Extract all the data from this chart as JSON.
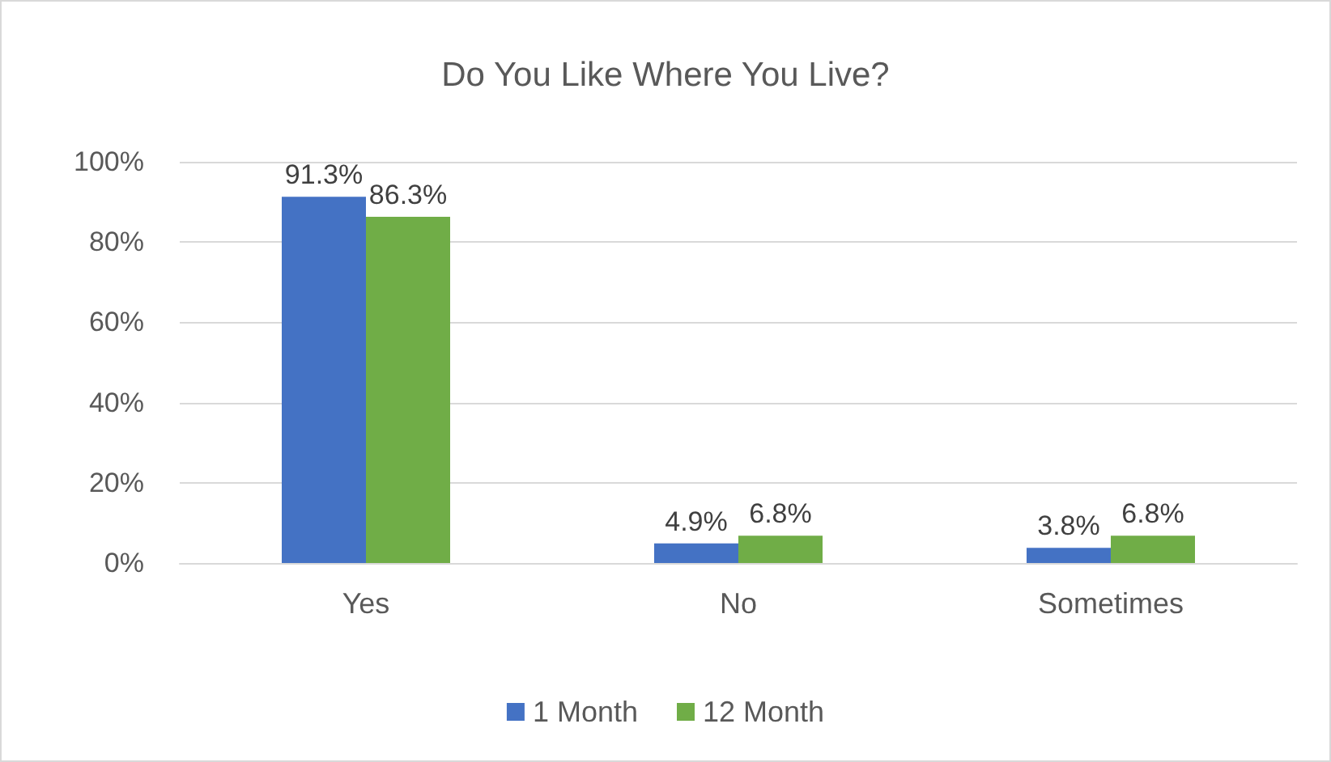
{
  "chart_data": {
    "type": "bar",
    "title": "Do You Like Where You Live?",
    "categories": [
      "Yes",
      "No",
      "Sometimes"
    ],
    "series": [
      {
        "name": "1 Month",
        "color": "#4472c4",
        "values": [
          91.3,
          4.9,
          3.8
        ],
        "value_labels": [
          "91.3%",
          "4.9%",
          "3.8%"
        ]
      },
      {
        "name": "12 Month",
        "color": "#70ad47",
        "values": [
          86.3,
          6.8,
          6.8
        ],
        "value_labels": [
          "86.3%",
          "6.8%",
          "6.8%"
        ]
      }
    ],
    "ylim": [
      0,
      100
    ],
    "yticks": [
      {
        "value": 0,
        "label": "0%"
      },
      {
        "value": 20,
        "label": "20%"
      },
      {
        "value": 40,
        "label": "40%"
      },
      {
        "value": 60,
        "label": "60%"
      },
      {
        "value": 80,
        "label": "80%"
      },
      {
        "value": 100,
        "label": "100%"
      }
    ],
    "grid": "y",
    "legend": "bottom"
  }
}
